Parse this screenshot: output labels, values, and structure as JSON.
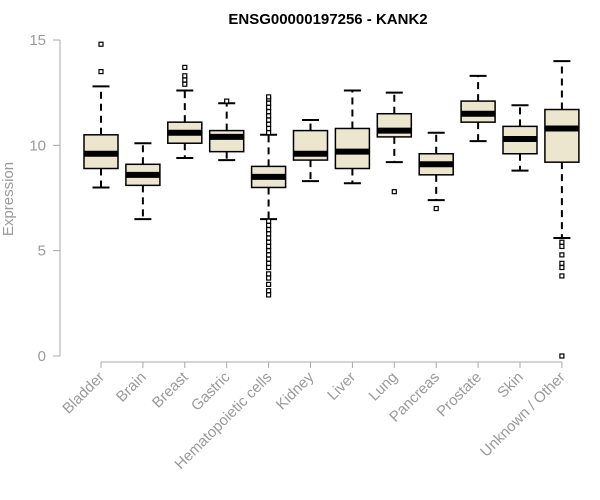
{
  "chart_data": {
    "type": "boxplot",
    "title": "ENSG00000197256 - KANK2",
    "xlabel": "",
    "ylabel": "Expression",
    "ylim": [
      0,
      15
    ],
    "yticks": [
      0,
      5,
      10,
      15
    ],
    "grid": false,
    "box_fill": "#ede6cf",
    "categories": [
      "Bladder",
      "Brain",
      "Breast",
      "Gastric",
      "Hematopoietic cells",
      "Kidney",
      "Liver",
      "Lung",
      "Pancreas",
      "Prostate",
      "Skin",
      "Unknown / Other"
    ],
    "boxes": [
      {
        "name": "Bladder",
        "whisker_low": 8.0,
        "q1": 8.9,
        "median": 9.6,
        "q3": 10.5,
        "whisker_high": 12.8,
        "outliers": [
          13.5,
          14.8
        ]
      },
      {
        "name": "Brain",
        "whisker_low": 6.5,
        "q1": 8.1,
        "median": 8.6,
        "q3": 9.1,
        "whisker_high": 10.1,
        "outliers": []
      },
      {
        "name": "Breast",
        "whisker_low": 9.4,
        "q1": 10.1,
        "median": 10.6,
        "q3": 11.1,
        "whisker_high": 12.6,
        "outliers": [
          12.9,
          13.1,
          13.3,
          13.7
        ]
      },
      {
        "name": "Gastric",
        "whisker_low": 9.3,
        "q1": 9.7,
        "median": 10.4,
        "q3": 10.7,
        "whisker_high": 12.0,
        "outliers": [
          12.1
        ]
      },
      {
        "name": "Hematopoietic cells",
        "whisker_low": 6.5,
        "q1": 8.0,
        "median": 8.5,
        "q3": 9.0,
        "whisker_high": 10.5,
        "outliers": [
          2.9,
          3.1,
          3.4,
          3.7,
          3.9,
          4.2,
          4.4,
          4.6,
          4.8,
          5.0,
          5.2,
          5.4,
          5.6,
          5.8,
          6.0,
          6.2,
          6.4,
          10.6,
          10.8,
          11.0,
          11.2,
          11.4,
          11.6,
          11.8,
          12.0,
          12.2,
          12.3
        ]
      },
      {
        "name": "Kidney",
        "whisker_low": 8.3,
        "q1": 9.3,
        "median": 9.6,
        "q3": 10.7,
        "whisker_high": 11.2,
        "outliers": []
      },
      {
        "name": "Liver",
        "whisker_low": 8.2,
        "q1": 8.9,
        "median": 9.7,
        "q3": 10.8,
        "whisker_high": 12.6,
        "outliers": []
      },
      {
        "name": "Lung",
        "whisker_low": 9.2,
        "q1": 10.4,
        "median": 10.7,
        "q3": 11.5,
        "whisker_high": 12.5,
        "outliers": [
          7.8
        ]
      },
      {
        "name": "Pancreas",
        "whisker_low": 7.4,
        "q1": 8.6,
        "median": 9.1,
        "q3": 9.6,
        "whisker_high": 10.6,
        "outliers": [
          7.0
        ]
      },
      {
        "name": "Prostate",
        "whisker_low": 10.2,
        "q1": 11.1,
        "median": 11.5,
        "q3": 12.1,
        "whisker_high": 13.3,
        "outliers": []
      },
      {
        "name": "Skin",
        "whisker_low": 8.8,
        "q1": 9.6,
        "median": 10.3,
        "q3": 10.9,
        "whisker_high": 11.9,
        "outliers": []
      },
      {
        "name": "Unknown / Other",
        "whisker_low": 5.6,
        "q1": 9.2,
        "median": 10.8,
        "q3": 11.7,
        "whisker_high": 14.0,
        "outliers": [
          0.0,
          3.8,
          4.2,
          4.4,
          4.8,
          5.2,
          5.4
        ]
      }
    ]
  }
}
